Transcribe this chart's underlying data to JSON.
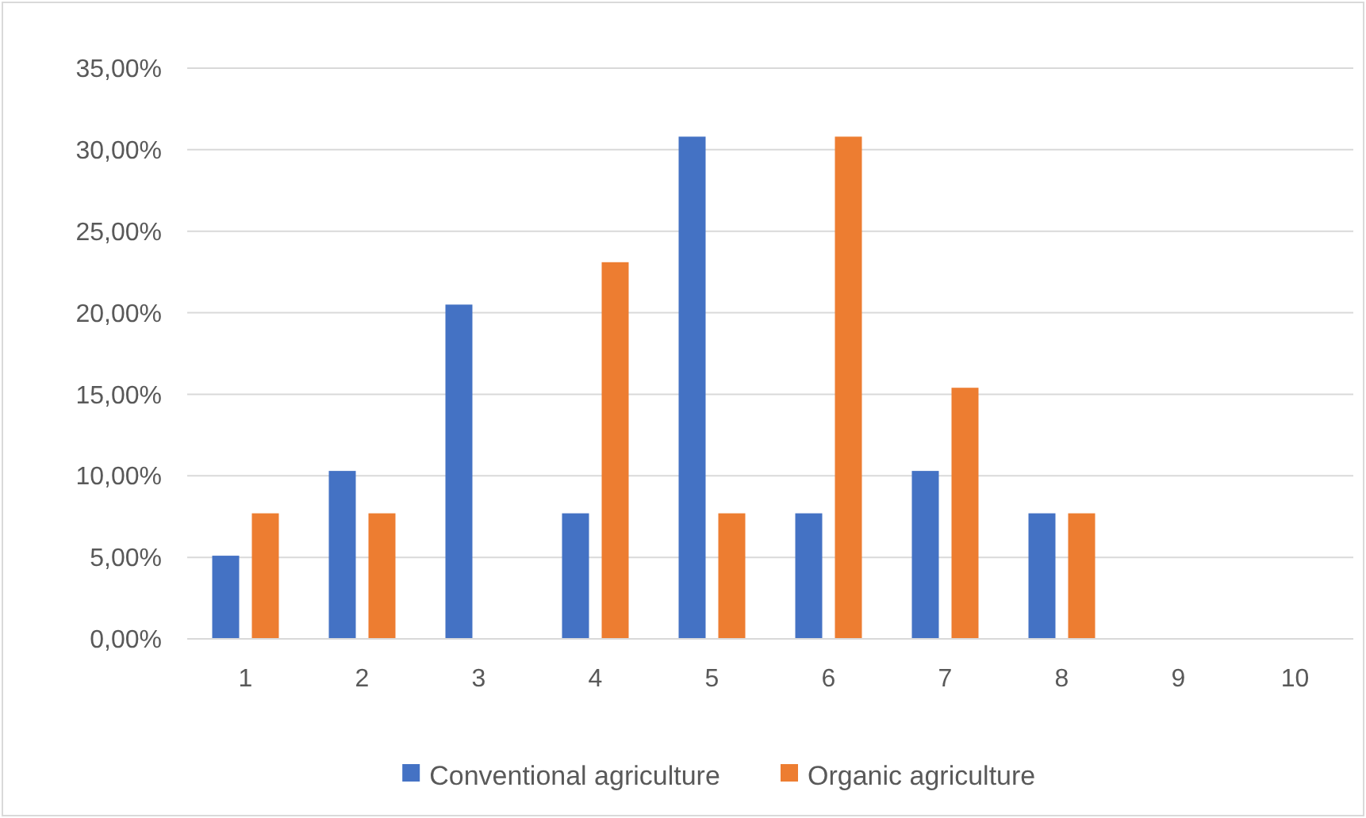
{
  "chart_data": {
    "type": "bar",
    "categories": [
      "1",
      "2",
      "3",
      "4",
      "5",
      "6",
      "7",
      "8",
      "9",
      "10"
    ],
    "series": [
      {
        "name": "Conventional agriculture",
        "color": "#4472c4",
        "values": [
          5.1,
          10.3,
          20.5,
          7.7,
          30.8,
          7.7,
          10.3,
          7.7,
          0,
          0
        ]
      },
      {
        "name": "Organic agriculture",
        "color": "#ed7d31",
        "values": [
          7.7,
          7.7,
          0,
          23.1,
          7.7,
          30.8,
          15.4,
          7.7,
          0,
          0
        ]
      }
    ],
    "ylim": [
      0,
      35
    ],
    "yticks": [
      {
        "value": 0,
        "label": "0,00%"
      },
      {
        "value": 5,
        "label": "5,00%"
      },
      {
        "value": 10,
        "label": "10,00%"
      },
      {
        "value": 15,
        "label": "15,00%"
      },
      {
        "value": 20,
        "label": "20,00%"
      },
      {
        "value": 25,
        "label": "25,00%"
      },
      {
        "value": 30,
        "label": "30,00%"
      },
      {
        "value": 35,
        "label": "35,00%"
      }
    ],
    "grid": "y",
    "legend": "bottom"
  }
}
